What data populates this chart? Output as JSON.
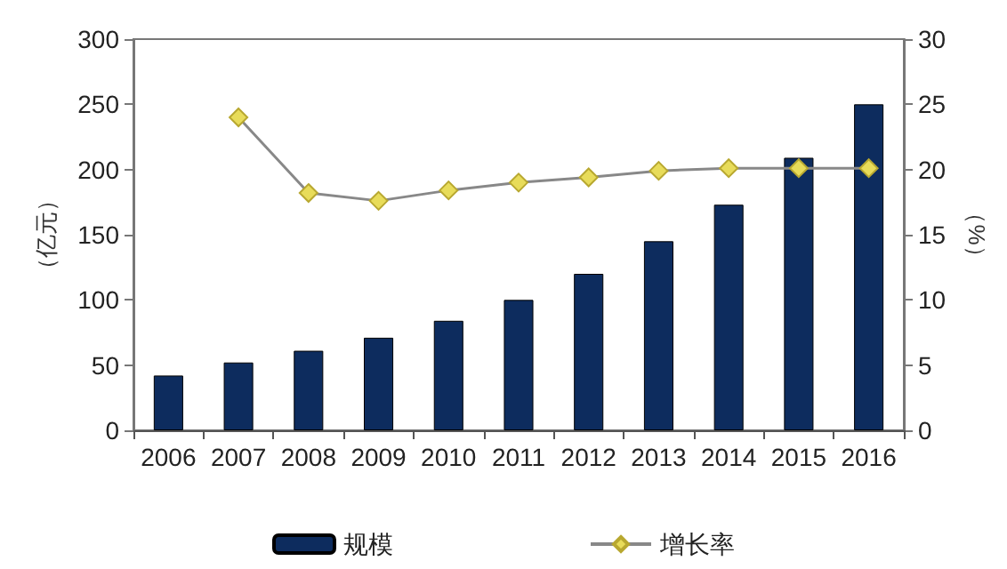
{
  "chart_data": {
    "type": "bar",
    "ylabel": "（亿元）",
    "y2label": "（%）",
    "categories": [
      "2006",
      "2007",
      "2008",
      "2009",
      "2010",
      "2011",
      "2012",
      "2013",
      "2014",
      "2015",
      "2016"
    ],
    "series": [
      {
        "name": "规模",
        "color": "#0d2c5e",
        "values": [
          42,
          52,
          61,
          71,
          84,
          100,
          120,
          145,
          173,
          209,
          250
        ]
      },
      {
        "name": "增长率",
        "type": "line",
        "axis": "y2",
        "color": "#e8dc5a",
        "marker": "diamond",
        "values": [
          null,
          24,
          18.2,
          17.6,
          18.4,
          19,
          19.4,
          19.9,
          20.1,
          20.1,
          20.1
        ]
      }
    ],
    "ylim": [
      0,
      300
    ],
    "yticks": [
      0,
      50,
      100,
      150,
      200,
      250,
      300
    ],
    "y2lim": [
      0,
      30
    ],
    "y2ticks": [
      0,
      5,
      10,
      15,
      20,
      25,
      30
    ],
    "grid": false,
    "legend": "bottom"
  }
}
